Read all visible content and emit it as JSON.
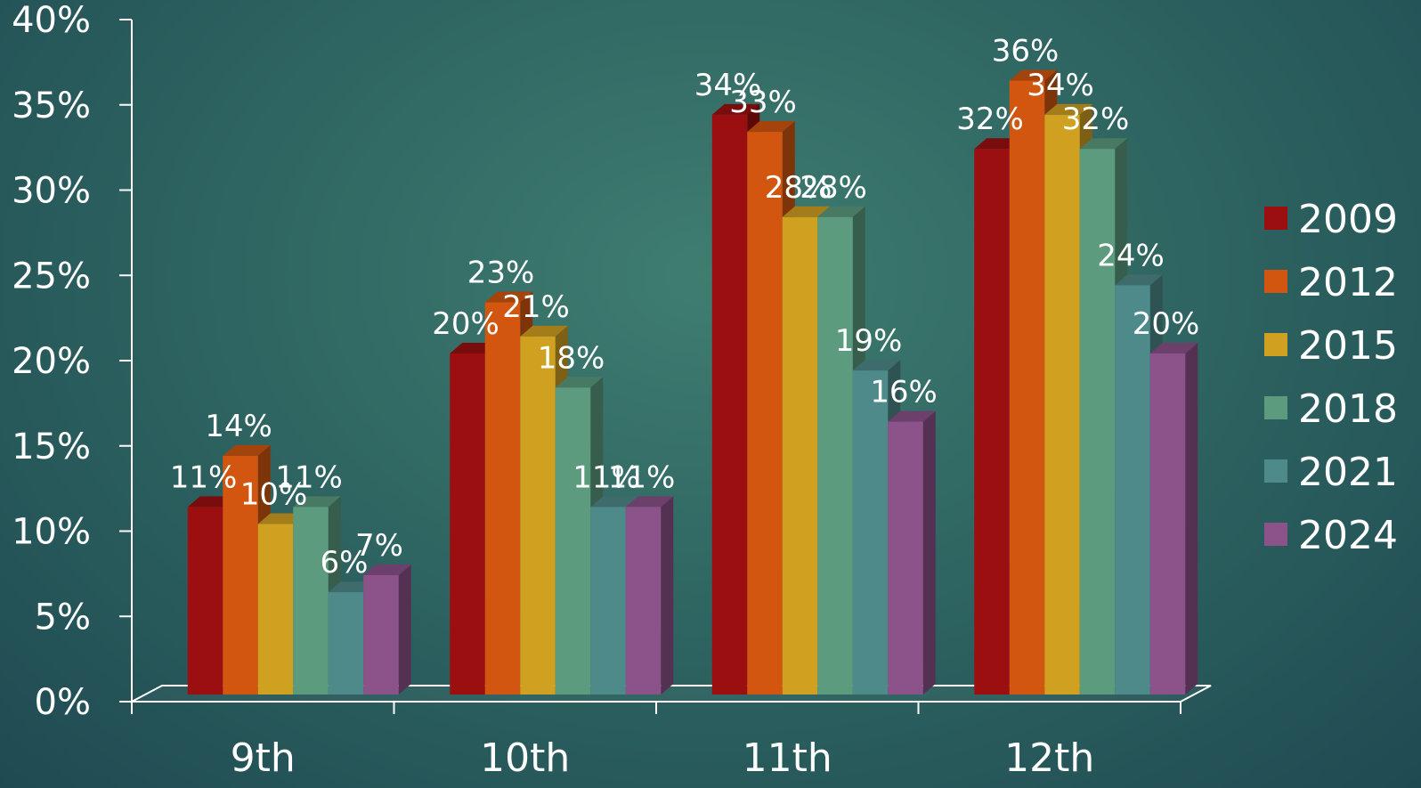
{
  "chart_data": {
    "type": "bar",
    "categories": [
      "9th",
      "10th",
      "11th",
      "12th"
    ],
    "series": [
      {
        "name": "2009",
        "color": "#9b0f10",
        "values": [
          11,
          20,
          34,
          32
        ]
      },
      {
        "name": "2012",
        "color": "#d2560f",
        "values": [
          14,
          23,
          33,
          36
        ]
      },
      {
        "name": "2015",
        "color": "#d0a020",
        "values": [
          10,
          21,
          28,
          34
        ]
      },
      {
        "name": "2018",
        "color": "#5c9b7e",
        "values": [
          11,
          18,
          28,
          32
        ]
      },
      {
        "name": "2021",
        "color": "#4f8a8a",
        "values": [
          6,
          11,
          19,
          24
        ]
      },
      {
        "name": "2024",
        "color": "#8c528a",
        "values": [
          7,
          11,
          16,
          20
        ]
      }
    ],
    "value_suffix": "%",
    "ylim": [
      0,
      40
    ],
    "yticks": [
      0,
      5,
      10,
      15,
      20,
      25,
      30,
      35,
      40
    ],
    "title": "",
    "xlabel": "",
    "ylabel": "",
    "grid": false,
    "legend": "right"
  }
}
